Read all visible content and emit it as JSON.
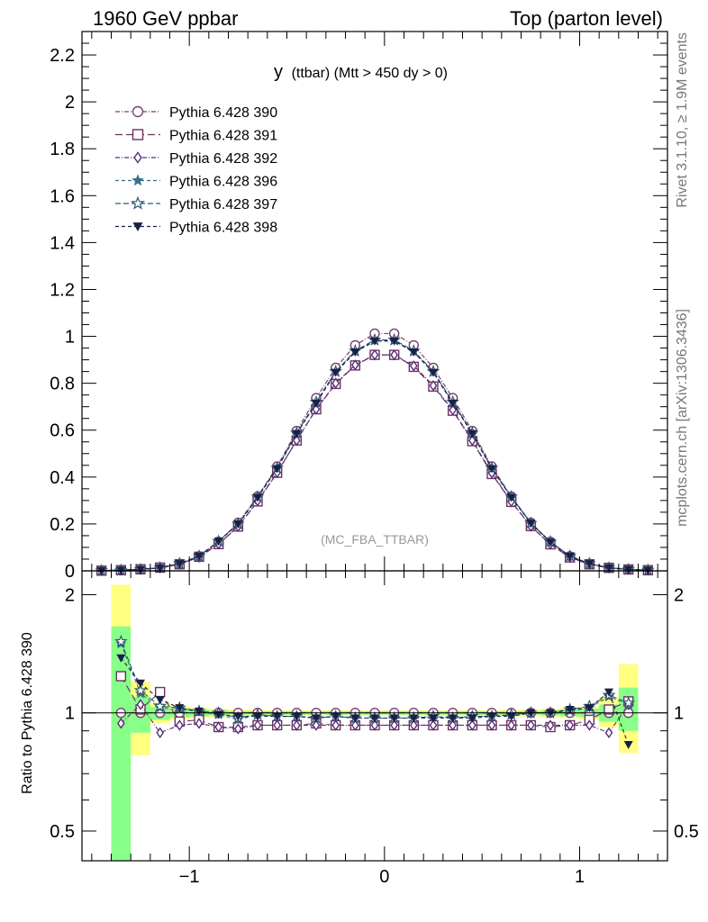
{
  "header": {
    "left": "1960 GeV ppbar",
    "right": "Top (parton level)"
  },
  "side_labels": {
    "rivet": "Rivet 3.1.10, ≥ 1.9M events",
    "mcplots": "mcplots.cern.ch [arXiv:1306.3436]"
  },
  "main_plot": {
    "title_main": "y",
    "title_rest": "(ttbar) (Mtt > 450 dy > 0)",
    "watermark": "(MC_FBA_TTBAR)"
  },
  "chart_data": [
    {
      "type": "line",
      "panel": "main",
      "title": "y (ttbar) (Mtt > 450 dy > 0)",
      "xlabel": "",
      "ylabel": "",
      "xlim": [
        -1.55,
        1.45
      ],
      "ylim": [
        0,
        2.3
      ],
      "y_ticks": [
        "0",
        "0.2",
        "0.4",
        "0.6",
        "0.8",
        "1",
        "1.2",
        "1.4",
        "1.6",
        "1.8",
        "2",
        "2.2"
      ],
      "legend_position": "top-left",
      "x": [
        -1.45,
        -1.35,
        -1.25,
        -1.15,
        -1.05,
        -0.95,
        -0.85,
        -0.75,
        -0.65,
        -0.55,
        -0.45,
        -0.35,
        -0.25,
        -0.15,
        -0.05,
        0.05,
        0.15,
        0.25,
        0.35,
        0.45,
        0.55,
        0.65,
        0.75,
        0.85,
        0.95,
        1.05,
        1.15,
        1.25,
        1.35
      ],
      "series": [
        {
          "name": "Pythia 6.428 390",
          "color": "#7a3e6e",
          "marker": "open-circle",
          "dash": "5,2,1,2",
          "values": [
            0.001,
            0.003,
            0.006,
            0.013,
            0.03,
            0.062,
            0.124,
            0.205,
            0.317,
            0.445,
            0.597,
            0.737,
            0.866,
            0.962,
            1.012,
            1.012,
            0.962,
            0.866,
            0.737,
            0.597,
            0.445,
            0.317,
            0.205,
            0.124,
            0.062,
            0.03,
            0.013,
            0.006,
            0.003
          ]
        },
        {
          "name": "Pythia 6.428 391",
          "color": "#6b3360",
          "marker": "open-square",
          "dash": "8,4",
          "values": [
            0.001,
            0.003,
            0.007,
            0.014,
            0.028,
            0.06,
            0.114,
            0.189,
            0.296,
            0.418,
            0.556,
            0.689,
            0.797,
            0.876,
            0.921,
            0.921,
            0.87,
            0.786,
            0.683,
            0.553,
            0.413,
            0.294,
            0.191,
            0.113,
            0.057,
            0.028,
            0.013,
            0.006,
            0.003
          ]
        },
        {
          "name": "Pythia 6.428 392",
          "color": "#5a2d7a",
          "marker": "open-diamond",
          "dash": "5,2,1,2",
          "values": [
            0.001,
            0.003,
            0.006,
            0.012,
            0.028,
            0.058,
            0.114,
            0.189,
            0.298,
            0.419,
            0.556,
            0.689,
            0.8,
            0.878,
            0.921,
            0.921,
            0.874,
            0.79,
            0.686,
            0.556,
            0.417,
            0.295,
            0.19,
            0.114,
            0.058,
            0.028,
            0.012,
            0.006,
            0.003
          ]
        },
        {
          "name": "Pythia 6.428 396",
          "color": "#3a6f84",
          "marker": "filled-star",
          "dash": "4,3",
          "values": [
            0.001,
            0.003,
            0.006,
            0.013,
            0.031,
            0.063,
            0.127,
            0.198,
            0.315,
            0.436,
            0.586,
            0.718,
            0.848,
            0.935,
            0.982,
            0.982,
            0.935,
            0.848,
            0.718,
            0.586,
            0.436,
            0.315,
            0.205,
            0.124,
            0.063,
            0.031,
            0.014,
            0.007,
            0.003
          ]
        },
        {
          "name": "Pythia 6.428 397",
          "color": "#2b5c73",
          "marker": "open-star",
          "dash": "6,3",
          "values": [
            0.001,
            0.003,
            0.006,
            0.013,
            0.031,
            0.063,
            0.126,
            0.2,
            0.316,
            0.438,
            0.588,
            0.72,
            0.85,
            0.938,
            0.985,
            0.985,
            0.938,
            0.85,
            0.72,
            0.588,
            0.438,
            0.316,
            0.203,
            0.124,
            0.063,
            0.031,
            0.013,
            0.006,
            0.003
          ]
        },
        {
          "name": "Pythia 6.428 398",
          "color": "#1a1f45",
          "marker": "filled-triangle-down",
          "dash": "4,3",
          "values": [
            0.001,
            0.003,
            0.006,
            0.013,
            0.03,
            0.062,
            0.126,
            0.2,
            0.313,
            0.436,
            0.585,
            0.715,
            0.846,
            0.933,
            0.98,
            0.98,
            0.933,
            0.846,
            0.715,
            0.585,
            0.436,
            0.313,
            0.203,
            0.122,
            0.062,
            0.03,
            0.013,
            0.006,
            0.003
          ]
        }
      ]
    },
    {
      "type": "line",
      "panel": "ratio",
      "xlabel": "",
      "ylabel": "Ratio to Pythia 6.428 390",
      "xlim": [
        -1.55,
        1.45
      ],
      "ylim": [
        0.42,
        2.3
      ],
      "x_ticks": [
        "−1",
        "0",
        "1"
      ],
      "y_ticks": [
        "0.5",
        "1",
        "2"
      ],
      "x": [
        -1.35,
        -1.25,
        -1.15,
        -1.05,
        -0.95,
        -0.85,
        -0.75,
        -0.65,
        -0.55,
        -0.45,
        -0.35,
        -0.25,
        -0.15,
        -0.05,
        0.05,
        0.15,
        0.25,
        0.35,
        0.45,
        0.55,
        0.65,
        0.75,
        0.85,
        0.95,
        1.05,
        1.15,
        1.25
      ],
      "band_outer": {
        "color": "#ffff80",
        "lower": [
          0.39,
          0.78,
          0.94,
          0.96,
          0.97,
          0.975,
          0.98,
          0.98,
          0.985,
          0.985,
          0.985,
          0.985,
          0.985,
          0.985,
          0.985,
          0.985,
          0.985,
          0.985,
          0.985,
          0.985,
          0.98,
          0.98,
          0.975,
          0.97,
          0.96,
          0.92,
          0.79
        ],
        "upper": [
          2.12,
          1.2,
          1.06,
          1.04,
          1.03,
          1.025,
          1.02,
          1.02,
          1.015,
          1.015,
          1.015,
          1.015,
          1.015,
          1.015,
          1.015,
          1.015,
          1.015,
          1.015,
          1.015,
          1.015,
          1.02,
          1.02,
          1.025,
          1.03,
          1.04,
          1.1,
          1.33
        ]
      },
      "band_inner": {
        "color": "#88ff88",
        "lower": [
          0.42,
          0.89,
          0.96,
          0.975,
          0.98,
          0.985,
          0.99,
          0.99,
          0.99,
          0.99,
          0.99,
          0.99,
          0.99,
          0.99,
          0.99,
          0.99,
          0.99,
          0.99,
          0.99,
          0.99,
          0.99,
          0.99,
          0.985,
          0.98,
          0.975,
          0.95,
          0.9
        ],
        "upper": [
          1.66,
          1.1,
          1.035,
          1.025,
          1.02,
          1.015,
          1.01,
          1.01,
          1.01,
          1.01,
          1.01,
          1.01,
          1.01,
          1.01,
          1.01,
          1.01,
          1.01,
          1.01,
          1.01,
          1.01,
          1.01,
          1.01,
          1.015,
          1.02,
          1.025,
          1.05,
          1.16
        ]
      },
      "series": [
        {
          "name": "Pythia 6.428 390",
          "color": "#7a3e6e",
          "marker": "open-circle",
          "values": [
            1,
            1,
            1,
            1,
            1,
            1,
            1,
            1,
            1,
            1,
            1,
            1,
            1,
            1,
            1,
            1,
            1,
            1,
            1,
            1,
            1,
            1,
            1,
            1,
            1,
            1,
            1
          ]
        },
        {
          "name": "Pythia 6.428 391",
          "color": "#6b3360",
          "marker": "open-square",
          "values": [
            1.24,
            1.02,
            1.13,
            0.95,
            0.96,
            0.92,
            0.92,
            0.93,
            0.93,
            0.93,
            0.94,
            0.93,
            0.93,
            0.93,
            0.93,
            0.93,
            0.93,
            0.93,
            0.93,
            0.93,
            0.93,
            0.93,
            0.92,
            0.93,
            0.96,
            1.02,
            1.07
          ]
        },
        {
          "name": "Pythia 6.428 392",
          "color": "#5a2d7a",
          "marker": "open-diamond",
          "values": [
            0.94,
            1.05,
            0.89,
            0.93,
            0.94,
            0.92,
            0.91,
            0.93,
            0.93,
            0.93,
            0.93,
            0.93,
            0.93,
            0.93,
            0.93,
            0.93,
            0.93,
            0.93,
            0.93,
            0.93,
            0.93,
            0.93,
            0.93,
            0.93,
            0.93,
            0.89,
            1.05
          ]
        },
        {
          "name": "Pythia 6.428 396",
          "color": "#3a6f84",
          "marker": "filled-star",
          "values": [
            1.5,
            1.12,
            1.03,
            1.02,
            1.01,
            0.99,
            0.96,
            0.99,
            0.98,
            0.98,
            0.97,
            0.98,
            0.97,
            0.97,
            0.97,
            0.97,
            0.98,
            0.97,
            0.98,
            0.98,
            0.99,
            1.0,
            1.0,
            1.01,
            1.03,
            1.1,
            1.05
          ]
        },
        {
          "name": "Pythia 6.428 397",
          "color": "#2b5c73",
          "marker": "open-star",
          "values": [
            1.52,
            1.14,
            1.04,
            1.03,
            1.01,
            1.0,
            0.97,
            0.99,
            0.98,
            0.98,
            0.97,
            0.98,
            0.97,
            0.97,
            0.97,
            0.97,
            0.98,
            0.97,
            0.98,
            0.98,
            0.99,
            1.0,
            1.0,
            1.02,
            1.04,
            1.11,
            1.06
          ]
        },
        {
          "name": "Pythia 6.428 398",
          "color": "#1a1f45",
          "marker": "filled-triangle-down",
          "values": [
            1.38,
            1.19,
            1.08,
            1.03,
            1.01,
            0.99,
            0.98,
            0.98,
            0.98,
            0.98,
            0.97,
            0.98,
            0.97,
            0.97,
            0.97,
            0.97,
            0.97,
            0.97,
            0.97,
            0.98,
            0.98,
            1.0,
            1.0,
            1.02,
            1.03,
            1.13,
            0.83
          ]
        }
      ]
    }
  ]
}
